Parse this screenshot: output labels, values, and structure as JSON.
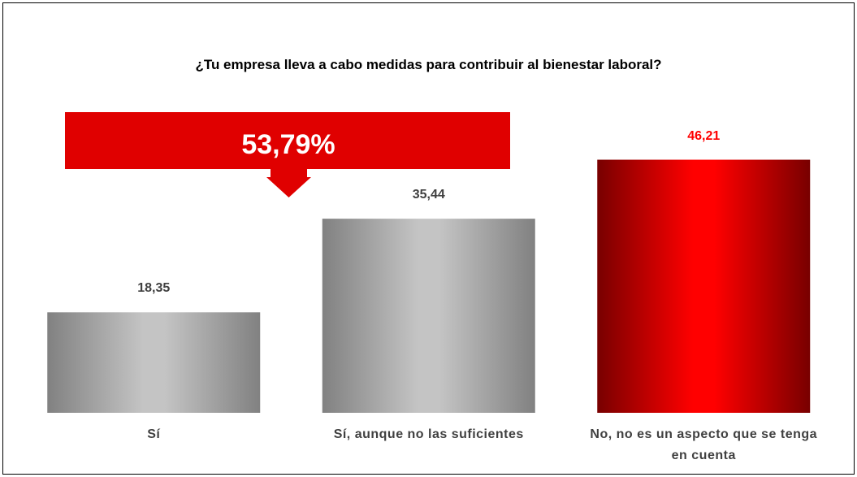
{
  "chart_data": {
    "type": "bar",
    "title": "¿Tu empresa lleva a cabo medidas para contribuir al bienestar laboral?",
    "annotation": "53,79%",
    "categories": [
      "Sí",
      "Sí, aunque no las suficientes",
      "No, no es un aspecto que se tenga en cuenta"
    ],
    "values": [
      18.35,
      35.44,
      46.21
    ],
    "value_labels": [
      "18,35",
      "35,44",
      "46,21"
    ],
    "colors": [
      "#c4c4c4",
      "#c4c4c4",
      "#ff0000"
    ],
    "label_colors": [
      "#404040",
      "#404040",
      "#ff0000"
    ],
    "annotation_color": "#e00000",
    "ylim": [
      0,
      50
    ]
  }
}
